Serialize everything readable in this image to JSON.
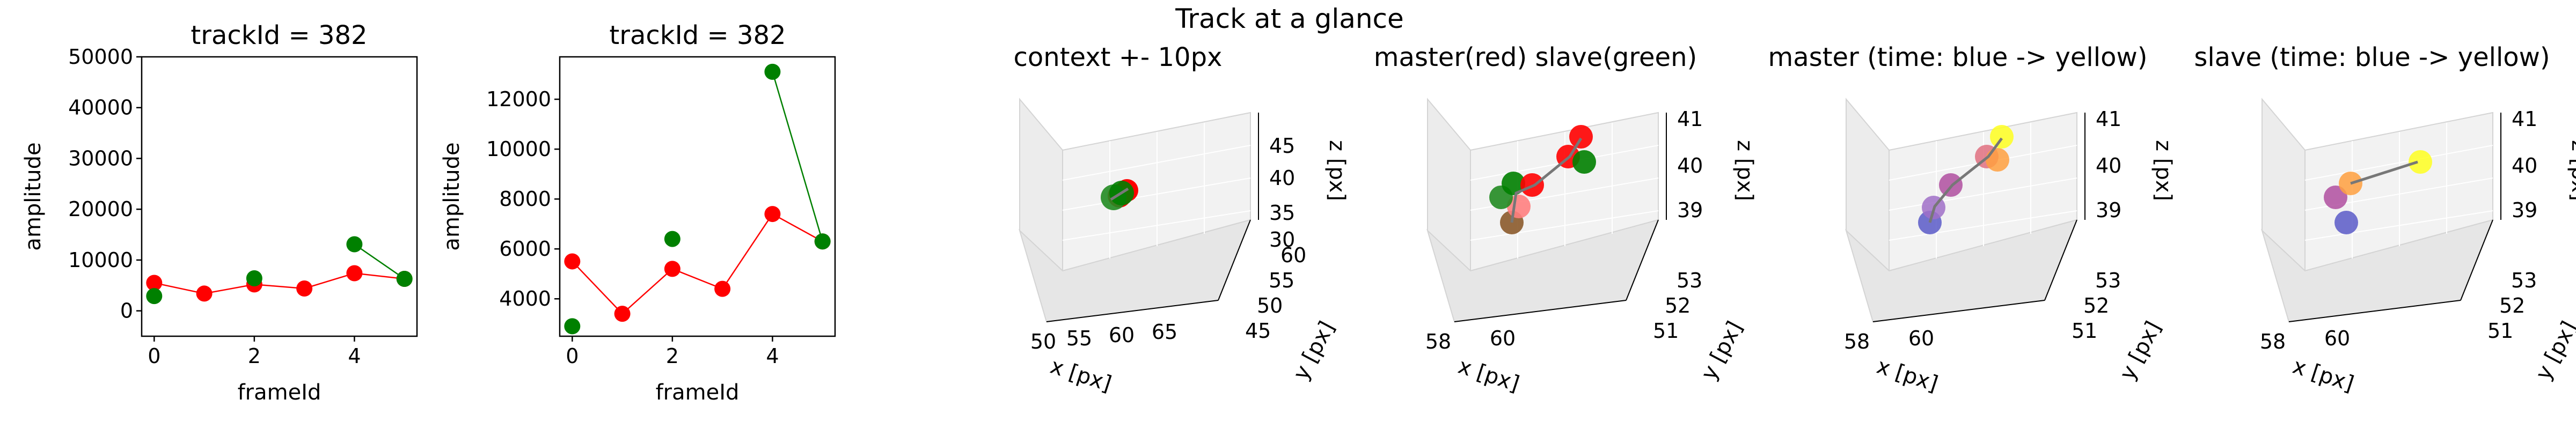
{
  "figure": {
    "suptitle": "Track at a glance"
  },
  "chart_data": [
    {
      "type": "line",
      "title": "trackId = 382",
      "xlabel": "frameId",
      "ylabel": "amplitude",
      "xlim": [
        -0.25,
        5.25
      ],
      "ylim": [
        -5000,
        50000
      ],
      "xticks": [
        0,
        2,
        4
      ],
      "yticks": [
        0,
        10000,
        20000,
        30000,
        40000,
        50000
      ],
      "series": [
        {
          "color": "#ff0000",
          "x": [
            0,
            1,
            2,
            3,
            4,
            5
          ],
          "y": [
            5500,
            3400,
            5200,
            4400,
            7400,
            6300
          ]
        },
        {
          "color": "#008000",
          "x": [
            0,
            2,
            4,
            5
          ],
          "y": [
            2900,
            6400,
            13100,
            6300
          ],
          "line_segments": [
            [
              2,
              3
            ]
          ]
        }
      ]
    },
    {
      "type": "line",
      "title": "trackId = 382",
      "xlabel": "frameId",
      "ylabel": "amplitude",
      "xlim": [
        -0.25,
        5.25
      ],
      "ylim": [
        2500,
        13700
      ],
      "xticks": [
        0,
        2,
        4
      ],
      "yticks": [
        4000,
        6000,
        8000,
        10000,
        12000
      ],
      "series": [
        {
          "color": "#ff0000",
          "x": [
            0,
            1,
            2,
            3,
            4,
            5
          ],
          "y": [
            5500,
            3400,
            5200,
            4400,
            7400,
            6300
          ]
        },
        {
          "color": "#008000",
          "x": [
            0,
            2,
            4,
            5
          ],
          "y": [
            2900,
            6400,
            13100,
            6300
          ],
          "line_segments": [
            [
              2,
              3
            ]
          ]
        }
      ]
    },
    {
      "type": "scatter3d",
      "title": "context +- 10px",
      "xlabel": "x [px]",
      "ylabel": "y [px]",
      "zlabel": "z [px]",
      "xticks": [
        "50",
        "55",
        "60",
        "65"
      ],
      "yticks": [
        "45",
        "50",
        "55",
        "60"
      ],
      "zticks": [
        "30",
        "35",
        "40",
        "45"
      ]
    },
    {
      "type": "scatter3d",
      "title": "master(red) slave(green)",
      "xlabel": "x [px]",
      "ylabel": "y [px]",
      "zlabel": "z [px]",
      "xticks": [
        "58",
        "60"
      ],
      "yticks": [
        "51",
        "52",
        "53"
      ],
      "zticks": [
        "39",
        "40",
        "41"
      ]
    },
    {
      "type": "scatter3d",
      "title": "master (time: blue -> yellow)",
      "xlabel": "x [px]",
      "ylabel": "y [px]",
      "zlabel": "z [px]",
      "xticks": [
        "58",
        "60"
      ],
      "yticks": [
        "51",
        "52",
        "53"
      ],
      "zticks": [
        "39",
        "40",
        "41"
      ]
    },
    {
      "type": "scatter3d",
      "title": "slave (time: blue -> yellow)",
      "xlabel": "x [px]",
      "ylabel": "y [px]",
      "zlabel": "z [px]",
      "xticks": [
        "58",
        "60"
      ],
      "yticks": [
        "51",
        "52",
        "53"
      ],
      "zticks": [
        "39",
        "40",
        "41"
      ]
    }
  ]
}
